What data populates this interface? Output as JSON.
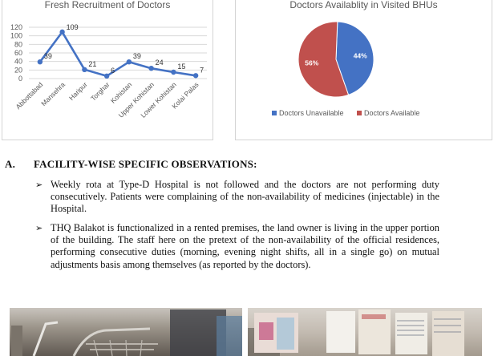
{
  "line_chart": {
    "title": "Fresh Recruitment of Doctors",
    "colors": {
      "line": "#4472c4",
      "grid": "#d9d9d9",
      "text": "#595959"
    }
  },
  "pie_chart": {
    "title": "Doctors Availablity in Visited BHUs",
    "colors": {
      "unavailable": "#4472c4",
      "available": "#c0504d"
    }
  },
  "chart_data": [
    {
      "type": "line",
      "title": "Fresh Recruitment of Doctors",
      "categories": [
        "Abbottabad",
        "Mansehra",
        "Haripur",
        "Torghar",
        "Kohistan",
        "Upper Kohistan",
        "Lower Kohistan",
        "Kolai Palas"
      ],
      "series": [
        {
          "values": [
            39,
            109,
            21,
            6,
            39,
            24,
            15,
            7
          ]
        }
      ],
      "yticks": [
        0,
        20,
        40,
        60,
        80,
        100,
        120
      ],
      "ylim": [
        0,
        120
      ],
      "grid": true,
      "xlabel": "",
      "ylabel": ""
    },
    {
      "type": "pie",
      "title": "Doctors Availablity in Visited BHUs",
      "labels": [
        "Doctors Unavailable",
        "Doctors Available"
      ],
      "values": [
        44,
        56
      ],
      "value_labels": [
        "44%",
        "56%"
      ],
      "legend": "bottom"
    }
  ],
  "section": {
    "number": "A.",
    "heading": "FACILITY-WISE SPECIFIC OBSERVATIONS:"
  },
  "observations": [
    "Weekly rota at Type-D Hospital is not followed and the doctors are not performing duty consecutively. Patients were complaining of the non-availability of medicines (injectable) in the Hospital.",
    "THQ Balakot is functionalized in a rented premises, the land owner is living in the upper portion of the building. The staff here on the pretext of the non-availability of the official residences, performing consecutive duties (morning, evening night shifts, all in a single go) on mutual adjustments basis among themselves  (as reported by the doctors)."
  ]
}
